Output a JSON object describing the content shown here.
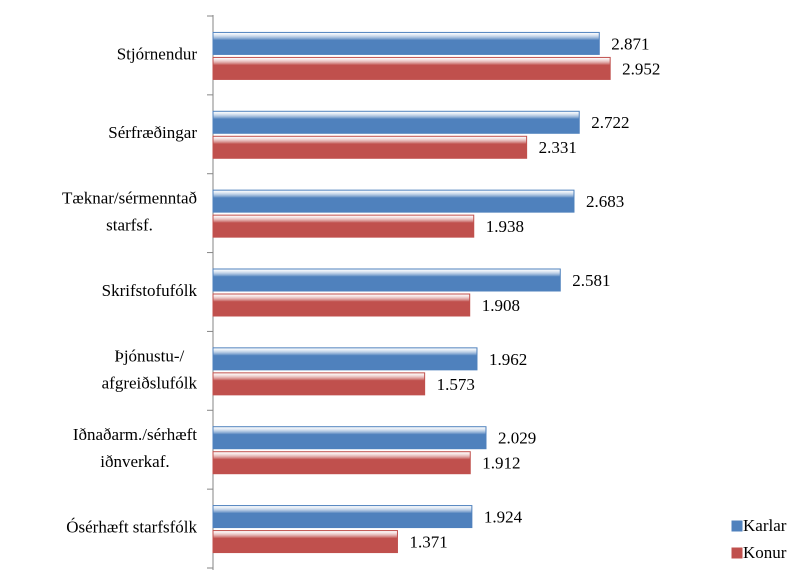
{
  "chart_data": {
    "type": "bar",
    "orientation": "horizontal",
    "categories": [
      [
        "Stjórnendur"
      ],
      [
        "Sérfræðingar"
      ],
      [
        "Tæknar/sérmenntað",
        "starfsf."
      ],
      [
        "Skrifstofufólk"
      ],
      [
        "Þjónustu-/",
        "afgreiðslufólk"
      ],
      [
        "Iðnaðarm./sérhæft",
        "iðnverkaf."
      ],
      [
        "Ósérhæft starfsfólk"
      ]
    ],
    "series": [
      {
        "name": "Karlar",
        "color": "#4f81bd",
        "values": [
          2.871,
          2.722,
          2.683,
          2.581,
          1.962,
          2.029,
          1.924
        ]
      },
      {
        "name": "Konur",
        "color": "#c0504d",
        "values": [
          2.952,
          2.331,
          1.938,
          1.908,
          1.573,
          1.912,
          1.371
        ]
      }
    ],
    "xlim": [
      0,
      4.4
    ],
    "legend": "bottom-right"
  }
}
